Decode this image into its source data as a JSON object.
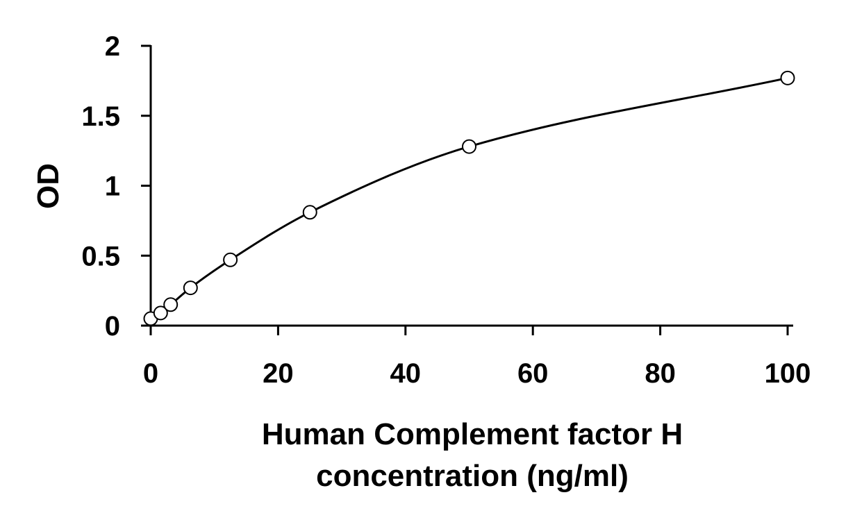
{
  "chart_data": {
    "type": "scatter",
    "title": "",
    "xlabel_lines": [
      "Human Complement factor H",
      "concentration (ng/ml)"
    ],
    "ylabel": "OD",
    "xlim": [
      0,
      100
    ],
    "ylim": [
      0,
      2
    ],
    "x_ticks": [
      0,
      20,
      40,
      60,
      80,
      100
    ],
    "x_tick_labels": [
      "0",
      "20",
      "40",
      "60",
      "80",
      "100"
    ],
    "y_ticks": [
      0,
      0.5,
      1,
      1.5,
      2
    ],
    "y_tick_labels": [
      "0",
      "0.5",
      "1",
      "1.5",
      "2"
    ],
    "grid": false,
    "legend": "none",
    "series": [
      {
        "x": [
          0,
          1.56,
          3.13,
          6.25,
          12.5,
          25,
          50,
          100
        ],
        "y": [
          0.05,
          0.09,
          0.15,
          0.27,
          0.47,
          0.81,
          1.28,
          1.77
        ],
        "marker": "open-circle",
        "fit_line": "smooth-curve"
      }
    ],
    "colors": {
      "axis": "#000000",
      "marker": "#000000",
      "line": "#000000"
    }
  }
}
